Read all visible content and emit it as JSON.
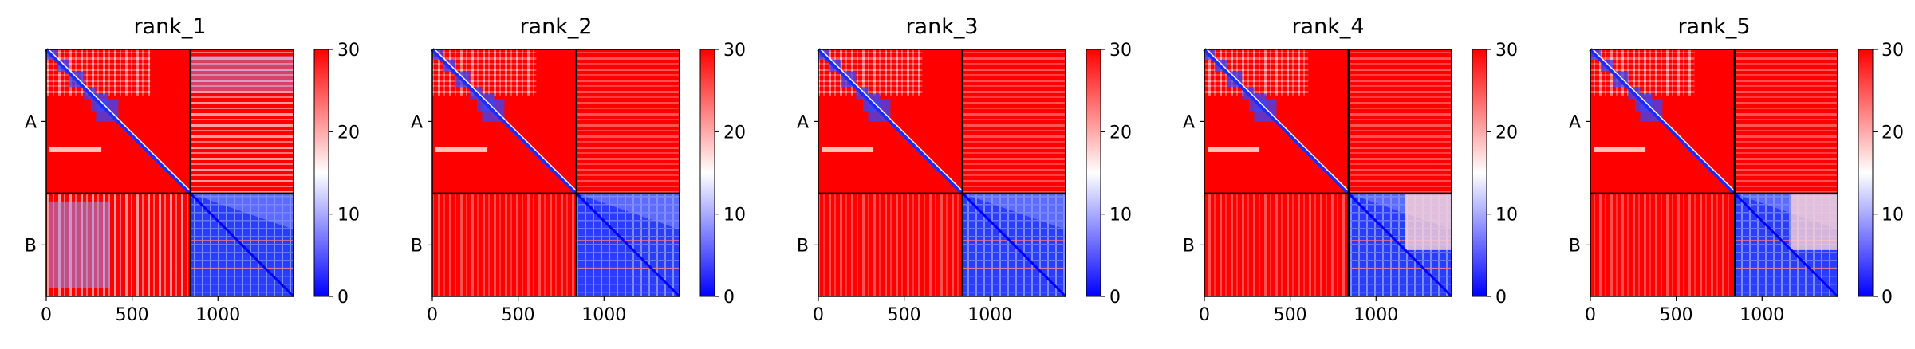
{
  "chart_data": [
    {
      "type": "heatmap",
      "title": "rank_1",
      "segments": [
        "A",
        "B"
      ],
      "boundary": 840,
      "xlim": [
        0,
        1440
      ],
      "xticks": [
        0,
        500,
        1000
      ],
      "colorbar": {
        "min": 0,
        "max": 30,
        "ticks": [
          0,
          10,
          20,
          30
        ],
        "colors": [
          "#0000ff",
          "#ffffff",
          "#ff0000"
        ]
      }
    },
    {
      "type": "heatmap",
      "title": "rank_2",
      "segments": [
        "A",
        "B"
      ],
      "boundary": 840,
      "xlim": [
        0,
        1440
      ],
      "xticks": [
        0,
        500,
        1000
      ],
      "colorbar": {
        "min": 0,
        "max": 30,
        "ticks": [
          0,
          10,
          20,
          30
        ],
        "colors": [
          "#0000ff",
          "#ffffff",
          "#ff0000"
        ]
      }
    },
    {
      "type": "heatmap",
      "title": "rank_3",
      "segments": [
        "A",
        "B"
      ],
      "boundary": 840,
      "xlim": [
        0,
        1440
      ],
      "xticks": [
        0,
        500,
        1000
      ],
      "colorbar": {
        "min": 0,
        "max": 30,
        "ticks": [
          0,
          10,
          20,
          30
        ],
        "colors": [
          "#0000ff",
          "#ffffff",
          "#ff0000"
        ]
      }
    },
    {
      "type": "heatmap",
      "title": "rank_4",
      "segments": [
        "A",
        "B"
      ],
      "boundary": 840,
      "xlim": [
        0,
        1440
      ],
      "xticks": [
        0,
        500,
        1000
      ],
      "colorbar": {
        "min": 0,
        "max": 30,
        "ticks": [
          0,
          10,
          20,
          30
        ],
        "colors": [
          "#0000ff",
          "#ffffff",
          "#ff0000"
        ]
      }
    },
    {
      "type": "heatmap",
      "title": "rank_5",
      "segments": [
        "A",
        "B"
      ],
      "boundary": 840,
      "xlim": [
        0,
        1440
      ],
      "xticks": [
        0,
        500,
        1000
      ],
      "colorbar": {
        "min": 0,
        "max": 30,
        "ticks": [
          0,
          10,
          20,
          30
        ],
        "colors": [
          "#0000ff",
          "#ffffff",
          "#ff0000"
        ]
      }
    }
  ]
}
